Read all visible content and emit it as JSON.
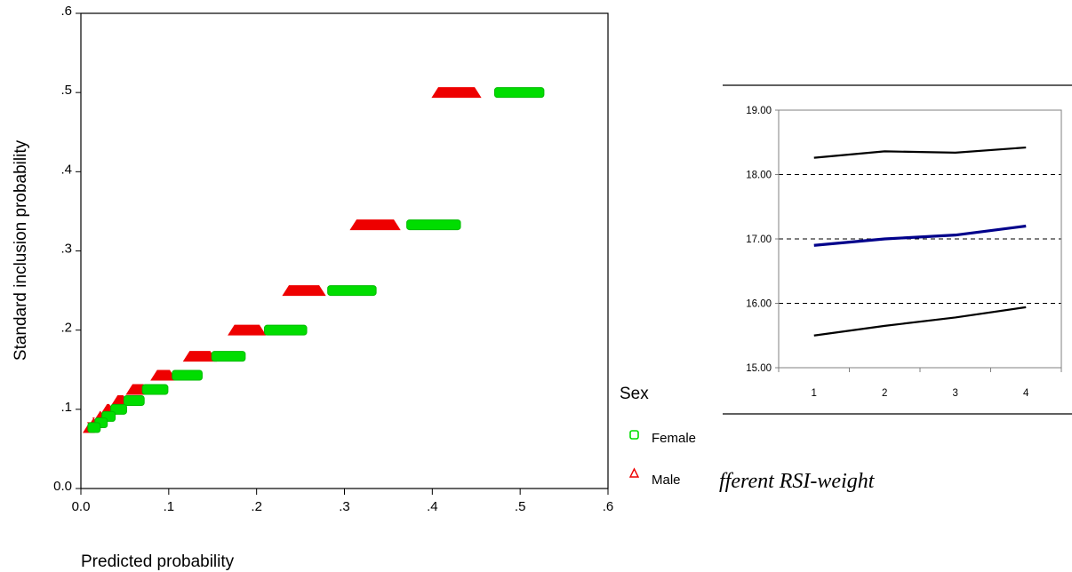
{
  "chart_data": [
    {
      "type": "scatter",
      "xlabel": "Predicted probability",
      "ylabel": "Standard inclusion probability",
      "xlim": [
        0,
        0.6
      ],
      "ylim": [
        0,
        0.6
      ],
      "x_ticks": [
        "0.0",
        ".1",
        ".2",
        ".3",
        ".4",
        ".5",
        ".6"
      ],
      "y_ticks": [
        "0.0",
        ".1",
        ".2",
        ".3",
        ".4",
        ".5",
        ".6"
      ],
      "grid": false,
      "legend": {
        "title": "Sex",
        "placement": "right",
        "entries": [
          {
            "label": "Female",
            "marker": "square",
            "color": "#00dd00"
          },
          {
            "label": "Male",
            "marker": "triangle",
            "color": "#ee0000"
          }
        ]
      },
      "series": [
        {
          "name": "Female",
          "color": "#00dd00",
          "points": [
            {
              "y": 0.5,
              "x_from": 0.475,
              "x_to": 0.523
            },
            {
              "y": 0.333,
              "x_from": 0.375,
              "x_to": 0.428
            },
            {
              "y": 0.25,
              "x_from": 0.285,
              "x_to": 0.332
            },
            {
              "y": 0.2,
              "x_from": 0.213,
              "x_to": 0.253
            },
            {
              "y": 0.167,
              "x_from": 0.153,
              "x_to": 0.183
            },
            {
              "y": 0.143,
              "x_from": 0.108,
              "x_to": 0.134
            },
            {
              "y": 0.125,
              "x_from": 0.074,
              "x_to": 0.095
            },
            {
              "y": 0.111,
              "x_from": 0.053,
              "x_to": 0.068
            },
            {
              "y": 0.1,
              "x_from": 0.038,
              "x_to": 0.048
            },
            {
              "y": 0.091,
              "x_from": 0.028,
              "x_to": 0.035
            },
            {
              "y": 0.083,
              "x_from": 0.02,
              "x_to": 0.026
            },
            {
              "y": 0.077,
              "x_from": 0.012,
              "x_to": 0.018
            }
          ]
        },
        {
          "name": "Male",
          "color": "#ee0000",
          "points": [
            {
              "y": 0.5,
              "x_from": 0.403,
              "x_to": 0.452
            },
            {
              "y": 0.333,
              "x_from": 0.31,
              "x_to": 0.36
            },
            {
              "y": 0.25,
              "x_from": 0.233,
              "x_to": 0.275
            },
            {
              "y": 0.2,
              "x_from": 0.171,
              "x_to": 0.207
            },
            {
              "y": 0.167,
              "x_from": 0.12,
              "x_to": 0.151
            },
            {
              "y": 0.143,
              "x_from": 0.083,
              "x_to": 0.105
            },
            {
              "y": 0.125,
              "x_from": 0.055,
              "x_to": 0.075
            },
            {
              "y": 0.111,
              "x_from": 0.038,
              "x_to": 0.052
            },
            {
              "y": 0.1,
              "x_from": 0.026,
              "x_to": 0.036
            },
            {
              "y": 0.091,
              "x_from": 0.018,
              "x_to": 0.026
            },
            {
              "y": 0.083,
              "x_from": 0.011,
              "x_to": 0.018
            },
            {
              "y": 0.077,
              "x_from": 0.006,
              "x_to": 0.012
            }
          ]
        }
      ]
    },
    {
      "type": "line",
      "categories": [
        "1",
        "2",
        "3",
        "4"
      ],
      "ylim": [
        15,
        19
      ],
      "y_ticks": [
        "15.00",
        "16.00",
        "17.00",
        "18.00",
        "19.00"
      ],
      "grid": "dashed horizontal",
      "series": [
        {
          "color": "#000000",
          "values": [
            18.26,
            18.36,
            18.34,
            18.42
          ]
        },
        {
          "color": "#00008b",
          "values": [
            16.9,
            17.0,
            17.06,
            17.2
          ]
        },
        {
          "color": "#000000",
          "values": [
            15.5,
            15.65,
            15.78,
            15.94
          ]
        }
      ]
    }
  ],
  "caption_fragment": "fferent RSI-weight"
}
